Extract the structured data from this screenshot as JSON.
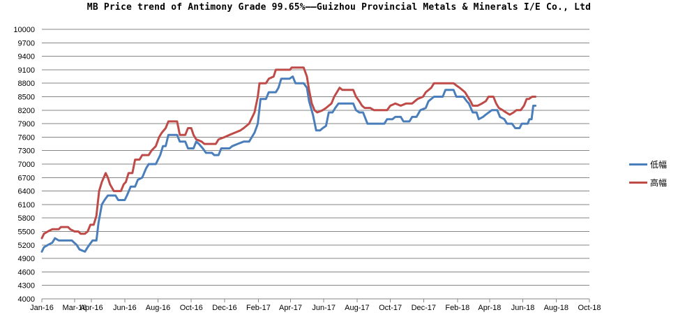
{
  "chart_data": {
    "type": "line",
    "title": "MB Price trend of Antimony Grade 99.65%——Guizhou Provincial Metals & Minerals I/E Co., Ltd",
    "xlabel": "",
    "ylabel": "",
    "ylim": [
      4000,
      10000
    ],
    "yticks": [
      4000,
      4300,
      4600,
      4900,
      5200,
      5500,
      5800,
      6100,
      6400,
      6700,
      7000,
      7300,
      7600,
      7900,
      8200,
      8500,
      8800,
      9100,
      9400,
      9700,
      10000
    ],
    "xlim": [
      "2016-01-01",
      "2018-10-01"
    ],
    "xticks": [
      "Jan-16",
      "Mar-16",
      "Apr-16",
      "Jun-16",
      "Aug-16",
      "Oct-16",
      "Dec-16",
      "Feb-17",
      "Apr-17",
      "Jun-17",
      "Aug-17",
      "Oct-17",
      "Dec-17",
      "Feb-18",
      "Apr-18",
      "Jun-18",
      "Aug-18",
      "Oct-18"
    ],
    "xtick_dates": [
      "2016-01-01",
      "2016-03-01",
      "2016-04-01",
      "2016-06-01",
      "2016-08-01",
      "2016-10-01",
      "2016-12-01",
      "2017-02-01",
      "2017-04-01",
      "2017-06-01",
      "2017-08-01",
      "2017-10-01",
      "2017-12-01",
      "2018-02-01",
      "2018-04-01",
      "2018-06-01",
      "2018-08-01",
      "2018-10-01"
    ],
    "grid": "horizontal",
    "legend_position": "right",
    "series": [
      {
        "name": "低幅",
        "color": "#4a7ebb",
        "points": [
          [
            "2016-01-01",
            5050
          ],
          [
            "2016-01-05",
            5150
          ],
          [
            "2016-01-12",
            5200
          ],
          [
            "2016-01-20",
            5250
          ],
          [
            "2016-01-25",
            5350
          ],
          [
            "2016-02-01",
            5300
          ],
          [
            "2016-02-25",
            5300
          ],
          [
            "2016-03-05",
            5200
          ],
          [
            "2016-03-10",
            5100
          ],
          [
            "2016-03-20",
            5050
          ],
          [
            "2016-03-25",
            5150
          ],
          [
            "2016-04-03",
            5300
          ],
          [
            "2016-04-10",
            5300
          ],
          [
            "2016-04-14",
            5700
          ],
          [
            "2016-04-20",
            6100
          ],
          [
            "2016-04-25",
            6200
          ],
          [
            "2016-05-01",
            6300
          ],
          [
            "2016-05-15",
            6300
          ],
          [
            "2016-05-20",
            6200
          ],
          [
            "2016-06-01",
            6200
          ],
          [
            "2016-06-05",
            6300
          ],
          [
            "2016-06-12",
            6500
          ],
          [
            "2016-06-20",
            6500
          ],
          [
            "2016-06-25",
            6650
          ],
          [
            "2016-07-03",
            6700
          ],
          [
            "2016-07-10",
            6900
          ],
          [
            "2016-07-15",
            7000
          ],
          [
            "2016-07-28",
            7000
          ],
          [
            "2016-08-05",
            7200
          ],
          [
            "2016-08-10",
            7400
          ],
          [
            "2016-08-15",
            7400
          ],
          [
            "2016-08-20",
            7650
          ],
          [
            "2016-09-05",
            7650
          ],
          [
            "2016-09-10",
            7500
          ],
          [
            "2016-09-20",
            7500
          ],
          [
            "2016-09-25",
            7350
          ],
          [
            "2016-10-05",
            7350
          ],
          [
            "2016-10-10",
            7500
          ],
          [
            "2016-10-15",
            7450
          ],
          [
            "2016-10-22",
            7350
          ],
          [
            "2016-10-28",
            7250
          ],
          [
            "2016-11-08",
            7250
          ],
          [
            "2016-11-12",
            7200
          ],
          [
            "2016-11-20",
            7200
          ],
          [
            "2016-11-25",
            7350
          ],
          [
            "2016-12-10",
            7350
          ],
          [
            "2016-12-15",
            7400
          ],
          [
            "2016-12-25",
            7450
          ],
          [
            "2017-01-05",
            7500
          ],
          [
            "2017-01-15",
            7500
          ],
          [
            "2017-01-25",
            7700
          ],
          [
            "2017-01-31",
            7900
          ],
          [
            "2017-02-05",
            8450
          ],
          [
            "2017-02-15",
            8450
          ],
          [
            "2017-02-20",
            8600
          ],
          [
            "2017-03-05",
            8600
          ],
          [
            "2017-03-10",
            8700
          ],
          [
            "2017-03-15",
            8900
          ],
          [
            "2017-03-30",
            8900
          ],
          [
            "2017-04-05",
            8950
          ],
          [
            "2017-04-10",
            8800
          ],
          [
            "2017-04-25",
            8800
          ],
          [
            "2017-05-01",
            8700
          ],
          [
            "2017-05-05",
            8400
          ],
          [
            "2017-05-12",
            8100
          ],
          [
            "2017-05-18",
            7750
          ],
          [
            "2017-05-25",
            7750
          ],
          [
            "2017-05-30",
            7800
          ],
          [
            "2017-06-05",
            7850
          ],
          [
            "2017-06-10",
            8150
          ],
          [
            "2017-06-17",
            8150
          ],
          [
            "2017-06-22",
            8250
          ],
          [
            "2017-06-28",
            8350
          ],
          [
            "2017-07-25",
            8350
          ],
          [
            "2017-07-30",
            8200
          ],
          [
            "2017-08-05",
            8150
          ],
          [
            "2017-08-12",
            8150
          ],
          [
            "2017-08-20",
            7900
          ],
          [
            "2017-09-20",
            7900
          ],
          [
            "2017-09-25",
            8000
          ],
          [
            "2017-10-05",
            8000
          ],
          [
            "2017-10-10",
            8050
          ],
          [
            "2017-10-20",
            8050
          ],
          [
            "2017-10-25",
            7950
          ],
          [
            "2017-11-05",
            7950
          ],
          [
            "2017-11-10",
            8050
          ],
          [
            "2017-11-18",
            8050
          ],
          [
            "2017-11-25",
            8200
          ],
          [
            "2017-12-05",
            8250
          ],
          [
            "2017-12-10",
            8400
          ],
          [
            "2017-12-20",
            8500
          ],
          [
            "2018-01-05",
            8500
          ],
          [
            "2018-01-10",
            8650
          ],
          [
            "2018-01-25",
            8650
          ],
          [
            "2018-01-30",
            8500
          ],
          [
            "2018-02-12",
            8500
          ],
          [
            "2018-02-18",
            8400
          ],
          [
            "2018-02-22",
            8350
          ],
          [
            "2018-03-01",
            8150
          ],
          [
            "2018-03-08",
            8150
          ],
          [
            "2018-03-12",
            8000
          ],
          [
            "2018-03-20",
            8050
          ],
          [
            "2018-03-25",
            8100
          ],
          [
            "2018-04-05",
            8200
          ],
          [
            "2018-04-15",
            8200
          ],
          [
            "2018-04-20",
            8050
          ],
          [
            "2018-04-28",
            8000
          ],
          [
            "2018-05-03",
            7900
          ],
          [
            "2018-05-12",
            7900
          ],
          [
            "2018-05-18",
            7800
          ],
          [
            "2018-05-26",
            7800
          ],
          [
            "2018-05-30",
            7900
          ],
          [
            "2018-06-10",
            7900
          ],
          [
            "2018-06-13",
            8000
          ],
          [
            "2018-06-17",
            8000
          ],
          [
            "2018-06-20",
            8300
          ],
          [
            "2018-06-24",
            8300
          ]
        ]
      },
      {
        "name": "高幅",
        "color": "#be4b48",
        "points": [
          [
            "2016-01-01",
            5350
          ],
          [
            "2016-01-05",
            5450
          ],
          [
            "2016-01-12",
            5500
          ],
          [
            "2016-01-20",
            5550
          ],
          [
            "2016-02-01",
            5550
          ],
          [
            "2016-02-05",
            5600
          ],
          [
            "2016-02-18",
            5600
          ],
          [
            "2016-02-22",
            5550
          ],
          [
            "2016-03-01",
            5500
          ],
          [
            "2016-03-08",
            5500
          ],
          [
            "2016-03-12",
            5450
          ],
          [
            "2016-03-20",
            5450
          ],
          [
            "2016-03-25",
            5500
          ],
          [
            "2016-03-30",
            5650
          ],
          [
            "2016-04-05",
            5650
          ],
          [
            "2016-04-10",
            5850
          ],
          [
            "2016-04-15",
            6400
          ],
          [
            "2016-04-20",
            6600
          ],
          [
            "2016-04-27",
            6800
          ],
          [
            "2016-05-01",
            6700
          ],
          [
            "2016-05-05",
            6550
          ],
          [
            "2016-05-12",
            6400
          ],
          [
            "2016-05-25",
            6400
          ],
          [
            "2016-05-30",
            6550
          ],
          [
            "2016-06-03",
            6600
          ],
          [
            "2016-06-08",
            6800
          ],
          [
            "2016-06-15",
            6800
          ],
          [
            "2016-06-20",
            7100
          ],
          [
            "2016-06-28",
            7100
          ],
          [
            "2016-07-03",
            7200
          ],
          [
            "2016-07-15",
            7200
          ],
          [
            "2016-07-20",
            7300
          ],
          [
            "2016-07-28",
            7400
          ],
          [
            "2016-08-03",
            7600
          ],
          [
            "2016-08-08",
            7700
          ],
          [
            "2016-08-15",
            7800
          ],
          [
            "2016-08-20",
            7950
          ],
          [
            "2016-09-05",
            7950
          ],
          [
            "2016-09-10",
            7650
          ],
          [
            "2016-09-20",
            7650
          ],
          [
            "2016-09-25",
            7800
          ],
          [
            "2016-10-01",
            7800
          ],
          [
            "2016-10-05",
            7650
          ],
          [
            "2016-10-10",
            7550
          ],
          [
            "2016-10-20",
            7500
          ],
          [
            "2016-10-25",
            7450
          ],
          [
            "2016-11-15",
            7450
          ],
          [
            "2016-11-20",
            7550
          ],
          [
            "2016-12-01",
            7600
          ],
          [
            "2016-12-10",
            7650
          ],
          [
            "2016-12-20",
            7700
          ],
          [
            "2016-12-30",
            7750
          ],
          [
            "2017-01-05",
            7800
          ],
          [
            "2017-01-15",
            7900
          ],
          [
            "2017-01-25",
            8150
          ],
          [
            "2017-01-31",
            8500
          ],
          [
            "2017-02-03",
            8800
          ],
          [
            "2017-02-15",
            8800
          ],
          [
            "2017-02-20",
            8900
          ],
          [
            "2017-03-01",
            8950
          ],
          [
            "2017-03-05",
            9100
          ],
          [
            "2017-03-31",
            9100
          ],
          [
            "2017-04-03",
            9150
          ],
          [
            "2017-04-25",
            9150
          ],
          [
            "2017-05-01",
            8950
          ],
          [
            "2017-05-05",
            8650
          ],
          [
            "2017-05-10",
            8350
          ],
          [
            "2017-05-15",
            8200
          ],
          [
            "2017-05-20",
            8150
          ],
          [
            "2017-05-30",
            8200
          ],
          [
            "2017-06-05",
            8250
          ],
          [
            "2017-06-15",
            8350
          ],
          [
            "2017-06-20",
            8500
          ],
          [
            "2017-06-25",
            8600
          ],
          [
            "2017-06-30",
            8700
          ],
          [
            "2017-07-05",
            8650
          ],
          [
            "2017-07-25",
            8650
          ],
          [
            "2017-07-30",
            8500
          ],
          [
            "2017-08-05",
            8400
          ],
          [
            "2017-08-10",
            8300
          ],
          [
            "2017-08-15",
            8250
          ],
          [
            "2017-08-25",
            8250
          ],
          [
            "2017-09-01",
            8200
          ],
          [
            "2017-09-25",
            8200
          ],
          [
            "2017-10-01",
            8300
          ],
          [
            "2017-10-10",
            8350
          ],
          [
            "2017-10-20",
            8300
          ],
          [
            "2017-10-30",
            8350
          ],
          [
            "2017-11-10",
            8350
          ],
          [
            "2017-11-20",
            8450
          ],
          [
            "2017-11-30",
            8500
          ],
          [
            "2017-12-05",
            8600
          ],
          [
            "2017-12-15",
            8700
          ],
          [
            "2017-12-20",
            8800
          ],
          [
            "2018-01-25",
            8800
          ],
          [
            "2018-01-30",
            8750
          ],
          [
            "2018-02-05",
            8700
          ],
          [
            "2018-02-15",
            8600
          ],
          [
            "2018-02-20",
            8500
          ],
          [
            "2018-02-25",
            8400
          ],
          [
            "2018-03-01",
            8300
          ],
          [
            "2018-03-10",
            8300
          ],
          [
            "2018-03-18",
            8350
          ],
          [
            "2018-03-25",
            8400
          ],
          [
            "2018-03-30",
            8500
          ],
          [
            "2018-04-08",
            8500
          ],
          [
            "2018-04-13",
            8350
          ],
          [
            "2018-04-18",
            8250
          ],
          [
            "2018-04-25",
            8200
          ],
          [
            "2018-05-01",
            8150
          ],
          [
            "2018-05-08",
            8100
          ],
          [
            "2018-05-15",
            8150
          ],
          [
            "2018-05-20",
            8200
          ],
          [
            "2018-05-28",
            8200
          ],
          [
            "2018-06-03",
            8300
          ],
          [
            "2018-06-08",
            8450
          ],
          [
            "2018-06-12",
            8450
          ],
          [
            "2018-06-18",
            8500
          ],
          [
            "2018-06-24",
            8500
          ]
        ]
      }
    ]
  }
}
